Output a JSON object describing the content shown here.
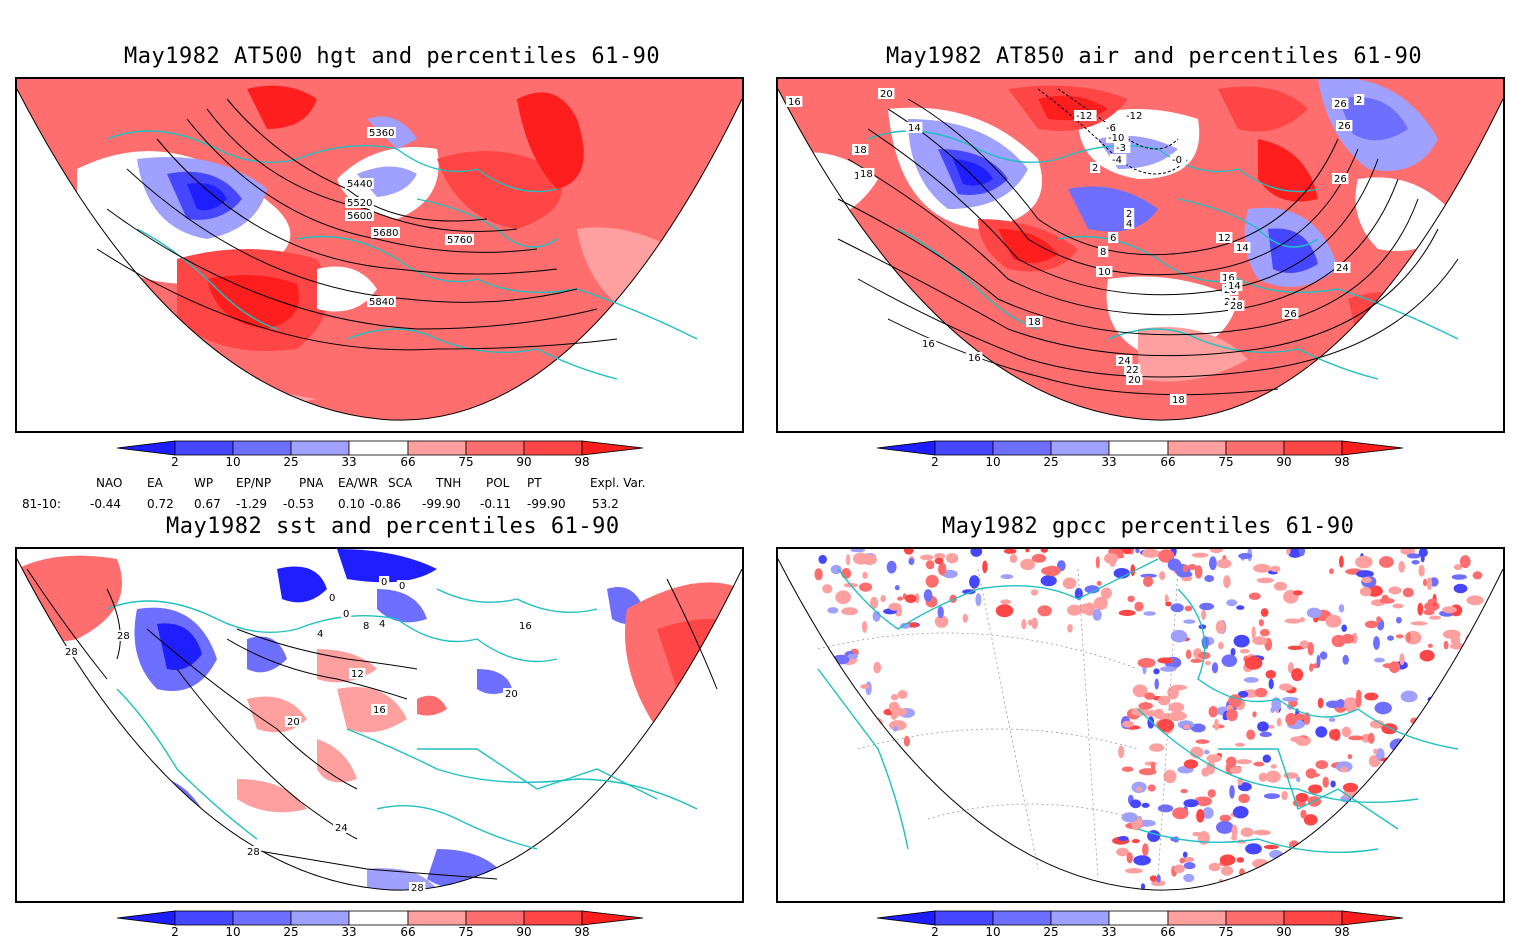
{
  "panels": [
    {
      "id": "p1",
      "title": "May1982 AT500 hgt and percentiles 61-90",
      "contour_labels": [
        "5360",
        "5440",
        "5520",
        "5600",
        "5680",
        "5760",
        "5840"
      ]
    },
    {
      "id": "p2",
      "title": "May1982 AT850 air and percentiles 61-90",
      "contour_labels": [
        "16",
        "20",
        "14",
        "18",
        "18",
        "-12",
        "-6",
        "-12",
        "-10",
        "-3",
        "-4",
        "-0",
        "2",
        "2",
        "4",
        "6",
        "8",
        "10",
        "12",
        "14",
        "16",
        "20",
        "24",
        "28",
        "26",
        "26",
        "26",
        "26",
        "2",
        "24",
        "14",
        "18",
        "16",
        "16",
        "18",
        "24",
        "22",
        "20",
        "18"
      ]
    },
    {
      "id": "p3",
      "title": "May1982 sst and percentiles 61-90",
      "contour_labels": [
        "28",
        "28",
        "0",
        "0",
        "0",
        "0",
        "4",
        "4",
        "8",
        "12",
        "16",
        "20",
        "24",
        "28",
        "28",
        "16",
        "20"
      ]
    },
    {
      "id": "p4",
      "title": "May1982 gpcc percentiles 61-90",
      "contour_labels": []
    }
  ],
  "colorbar": {
    "labels": [
      "2",
      "10",
      "25",
      "33",
      "66",
      "75",
      "90",
      "98"
    ],
    "colors": {
      "dark_blue": "#1e1eff",
      "blue": "#4646ff",
      "mid_blue": "#6e6eff",
      "light_blue": "#a0a0ff",
      "light_red": "#ffa0a0",
      "mid_red": "#ff6e6e",
      "red": "#ff4646",
      "dark_red": "#ff1e1e"
    }
  },
  "indices": {
    "headers": [
      "NAO",
      "EA",
      "WP",
      "EP/NP",
      "PNA",
      "EA/WR",
      "SCA",
      "TNH",
      "POL",
      "PT",
      "Expl. Var."
    ],
    "row_label": "81-10:",
    "values": [
      "-0.44",
      "0.72",
      "0.67",
      "-1.29",
      "-0.53",
      "0.10",
      "-0.86",
      "-99.90",
      "-0.11",
      "-99.90",
      "53.2"
    ]
  },
  "colors": {
    "coast": "#20c0c0",
    "contour": "#000000",
    "frame": "#000000"
  }
}
